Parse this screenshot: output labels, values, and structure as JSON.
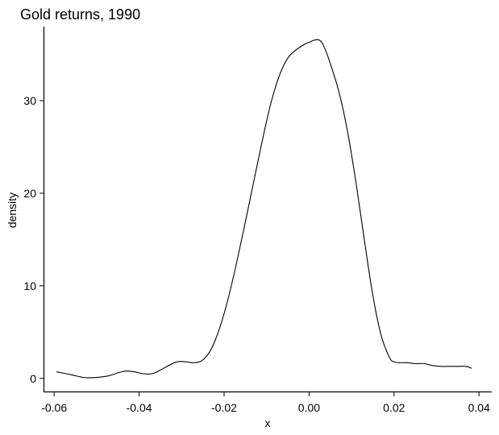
{
  "chart_data": {
    "type": "line",
    "title": "Gold returns, 1990",
    "xlabel": "x",
    "ylabel": "density",
    "xlim": [
      -0.0625,
      0.043
    ],
    "ylim": [
      -1.5,
      38
    ],
    "x_ticks": [
      -0.06,
      -0.04,
      -0.02,
      0.0,
      0.02,
      0.04
    ],
    "x_tick_labels": [
      "-0.06",
      "-0.04",
      "-0.02",
      "0.00",
      "0.02",
      "0.04"
    ],
    "y_ticks": [
      0,
      10,
      20,
      30
    ],
    "y_tick_labels": [
      "0",
      "10",
      "20",
      "30"
    ],
    "grid": false,
    "series": [
      {
        "color": "#000000",
        "x": [
          -0.0594,
          -0.056,
          -0.053,
          -0.05,
          -0.047,
          -0.045,
          -0.043,
          -0.041,
          -0.039,
          -0.037,
          -0.035,
          -0.033,
          -0.031,
          -0.029,
          -0.027,
          -0.025,
          -0.023,
          -0.021,
          -0.019,
          -0.017,
          -0.015,
          -0.013,
          -0.011,
          -0.009,
          -0.007,
          -0.005,
          -0.003,
          -0.001,
          0.0,
          0.001,
          0.002,
          0.003,
          0.004,
          0.005,
          0.007,
          0.009,
          0.011,
          0.013,
          0.015,
          0.017,
          0.019,
          0.02,
          0.021,
          0.022,
          0.023,
          0.025,
          0.027,
          0.029,
          0.031,
          0.033,
          0.035,
          0.037,
          0.0382
        ],
        "y": [
          0.7,
          0.4,
          0.1,
          0.1,
          0.3,
          0.6,
          0.8,
          0.7,
          0.5,
          0.5,
          0.9,
          1.4,
          1.8,
          1.8,
          1.7,
          2.0,
          3.2,
          5.5,
          8.7,
          12.6,
          16.9,
          21.3,
          25.7,
          29.7,
          32.7,
          34.6,
          35.5,
          36.1,
          36.3,
          36.5,
          36.6,
          36.3,
          35.3,
          34.0,
          31.0,
          26.8,
          21.3,
          15.0,
          9.0,
          4.6,
          2.2,
          1.8,
          1.7,
          1.7,
          1.7,
          1.6,
          1.6,
          1.4,
          1.3,
          1.3,
          1.3,
          1.3,
          1.1
        ]
      }
    ]
  }
}
